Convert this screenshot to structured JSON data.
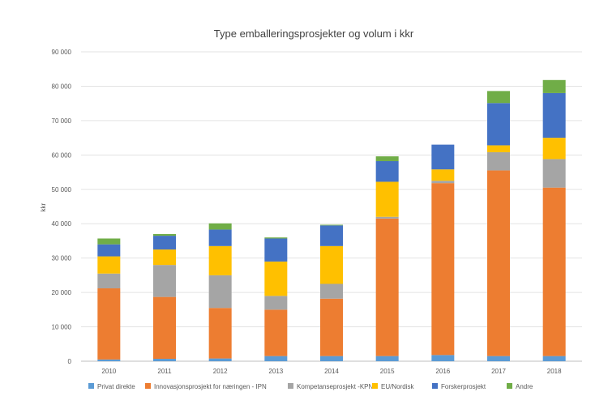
{
  "chart_data": {
    "type": "bar",
    "stacked": true,
    "title": "Type emballeringsprosjekter  og volum i kkr",
    "xlabel": "",
    "ylabel": "kkr",
    "ylim": [
      0,
      90000
    ],
    "yticks": [
      0,
      10000,
      20000,
      30000,
      40000,
      50000,
      60000,
      70000,
      80000,
      90000
    ],
    "ytick_labels": [
      "0",
      "10 000",
      "20 000",
      "30 000",
      "40 000",
      "50 000",
      "60 000",
      "70 000",
      "80 000",
      "90 000"
    ],
    "grid": true,
    "legend_position": "bottom",
    "categories": [
      "2010",
      "2011",
      "2012",
      "2013",
      "2014",
      "2015",
      "2016",
      "2017",
      "2018"
    ],
    "series": [
      {
        "name": "Privat direkte",
        "color": "#5b9bd5",
        "values": [
          500,
          700,
          800,
          1500,
          1500,
          1500,
          1800,
          1500,
          1500
        ]
      },
      {
        "name": "Innovasjonsprosjekt for næringen - IPN",
        "color": "#ed7d31",
        "values": [
          20700,
          18000,
          14700,
          13500,
          16700,
          40000,
          50000,
          54000,
          49000
        ]
      },
      {
        "name": "Kompetanseprosjekt -KPN",
        "color": "#a5a5a5",
        "values": [
          4300,
          9300,
          9500,
          4000,
          4300,
          500,
          700,
          5300,
          8300
        ]
      },
      {
        "name": "EU/Nordisk",
        "color": "#ffc000",
        "values": [
          5000,
          4500,
          8500,
          10000,
          11000,
          10200,
          3300,
          2000,
          6200
        ]
      },
      {
        "name": "Forskerprosjekt",
        "color": "#4472c4",
        "values": [
          3500,
          4000,
          4800,
          6700,
          6000,
          6000,
          7200,
          12300,
          13000
        ]
      },
      {
        "name": "Andre",
        "color": "#70ad47",
        "values": [
          1700,
          500,
          1800,
          300,
          200,
          1400,
          0,
          3500,
          3800
        ]
      }
    ]
  }
}
